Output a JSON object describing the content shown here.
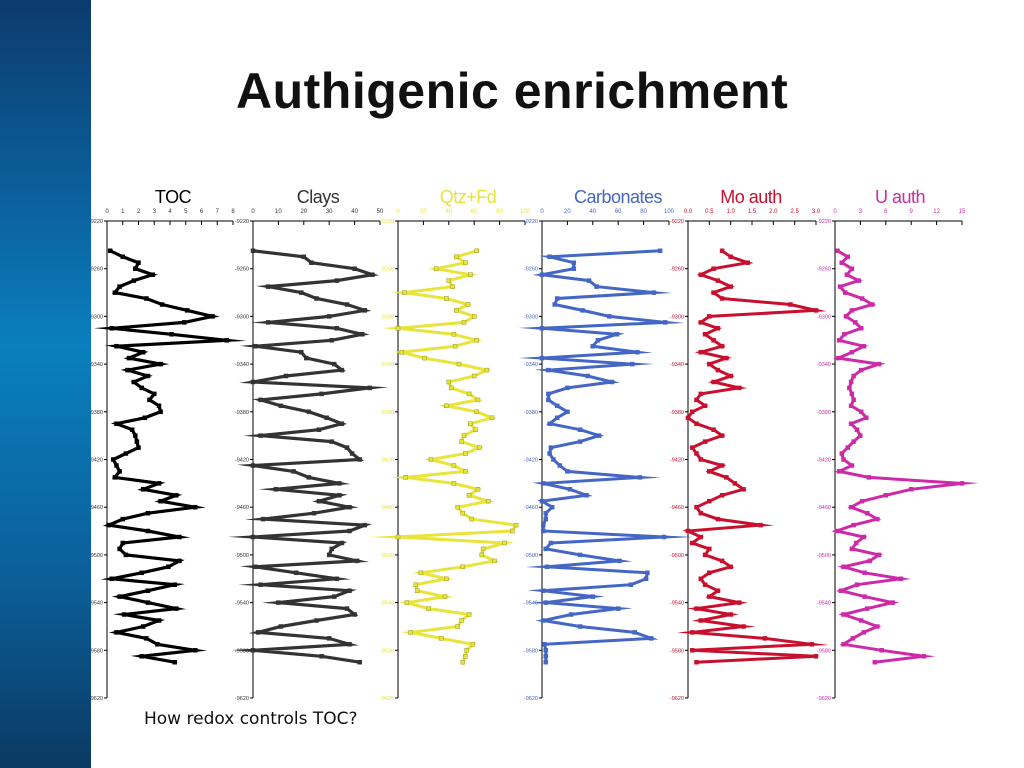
{
  "slide": {
    "title": "Authigenic enrichment",
    "caption": "How redox controls TOC?"
  },
  "chart_data": [
    {
      "type": "line",
      "title": "TOC",
      "color": "#000000",
      "xlim": [
        0,
        8
      ],
      "xticks": [
        "0",
        "1",
        "2",
        "3",
        "4",
        "5",
        "6",
        "7",
        "8"
      ],
      "ylim": [
        -9220,
        -9620
      ],
      "yticks": [
        "-9220",
        "-9260",
        "-9300",
        "-9340",
        "-9380",
        "-9420",
        "-9460",
        "-9500",
        "-9540",
        "-9580",
        "-9620"
      ],
      "depth": [
        -9245,
        -9250,
        -9255,
        -9260,
        -9265,
        -9270,
        -9275,
        -9280,
        -9285,
        -9290,
        -9295,
        -9300,
        -9305,
        -9310,
        -9315,
        -9320,
        -9325,
        -9330,
        -9335,
        -9340,
        -9345,
        -9350,
        -9355,
        -9360,
        -9365,
        -9370,
        -9375,
        -9380,
        -9385,
        -9390,
        -9395,
        -9400,
        -9405,
        -9410,
        -9415,
        -9420,
        -9425,
        -9430,
        -9435,
        -9440,
        -9445,
        -9450,
        -9455,
        -9460,
        -9465,
        -9470,
        -9475,
        -9480,
        -9485,
        -9490,
        -9495,
        -9500,
        -9505,
        -9510,
        -9515,
        -9520,
        -9525,
        -9530,
        -9535,
        -9540,
        -9545,
        -9550,
        -9555,
        -9560,
        -9565,
        -9570,
        -9575,
        -9580,
        -9585,
        -9590
      ],
      "values": [
        0.2,
        1.0,
        2.0,
        1.8,
        2.9,
        1.7,
        0.8,
        0.5,
        2.5,
        3.5,
        5.1,
        6.7,
        4.9,
        0.3,
        4.1,
        7.6,
        0.6,
        2.3,
        1.4,
        3.4,
        1.3,
        2.6,
        1.7,
        2.2,
        3.0,
        2.7,
        3.3,
        3.4,
        2.4,
        0.6,
        1.6,
        1.8,
        1.9,
        2.0,
        1.2,
        0.4,
        0.6,
        0.8,
        0.5,
        3.3,
        2.3,
        4.4,
        3.4,
        5.6,
        2.6,
        1.0,
        0.1,
        2.6,
        4.6,
        1.0,
        0.8,
        1.2,
        4.6,
        3.9,
        2.2,
        0.3,
        4.3,
        2.6,
        0.8,
        2.6,
        4.4,
        1.1,
        3.3,
        2.3,
        0.6,
        2.5,
        3.2,
        5.6,
        2.2,
        4.3
      ]
    },
    {
      "type": "line",
      "title": "Clays",
      "color": "#333333",
      "xlim": [
        0,
        50
      ],
      "xticks": [
        "0",
        "10",
        "20",
        "30",
        "40",
        "50"
      ],
      "ylim": [
        -9220,
        -9620
      ],
      "yticks": [
        "-9220",
        "-9260",
        "-9300",
        "-9340",
        "-9380",
        "-9420",
        "-9460",
        "-9500",
        "-9540",
        "-9580",
        "-9620"
      ],
      "depth": [
        -9245,
        -9250,
        -9255,
        -9260,
        -9265,
        -9270,
        -9275,
        -9280,
        -9285,
        -9290,
        -9295,
        -9300,
        -9305,
        -9310,
        -9315,
        -9320,
        -9325,
        -9330,
        -9335,
        -9340,
        -9345,
        -9350,
        -9355,
        -9360,
        -9365,
        -9370,
        -9375,
        -9380,
        -9385,
        -9390,
        -9395,
        -9400,
        -9405,
        -9410,
        -9415,
        -9420,
        -9425,
        -9430,
        -9435,
        -9440,
        -9445,
        -9450,
        -9455,
        -9460,
        -9465,
        -9470,
        -9475,
        -9480,
        -9485,
        -9490,
        -9495,
        -9500,
        -9505,
        -9510,
        -9515,
        -9520,
        -9525,
        -9530,
        -9535,
        -9540,
        -9545,
        -9550,
        -9555,
        -9560,
        -9565,
        -9570,
        -9575,
        -9580,
        -9585,
        -9590
      ],
      "values": [
        0,
        20,
        23,
        40,
        47,
        33,
        6,
        19,
        25,
        37,
        44,
        30,
        6,
        33,
        43,
        31,
        1,
        19,
        21,
        32,
        35,
        13,
        0,
        46,
        27,
        3,
        11,
        22,
        29,
        35,
        26,
        3,
        31,
        37,
        39,
        42,
        0,
        16,
        22,
        34,
        9,
        34,
        26,
        38,
        24,
        4,
        44,
        38,
        0,
        35,
        31,
        30,
        41,
        1,
        17,
        33,
        3,
        38,
        32,
        10,
        37,
        40,
        25,
        11,
        2,
        30,
        38,
        0,
        27,
        42
      ]
    },
    {
      "type": "line",
      "title": "Qtz+Fd",
      "color": "#e8e43a",
      "xlim": [
        0,
        100
      ],
      "xticks": [
        "0",
        "20",
        "40",
        "60",
        "80",
        "100"
      ],
      "ylim": [
        -9220,
        -9620
      ],
      "yticks": [
        "-9220",
        "-9260",
        "-9300",
        "-9340",
        "-9380",
        "-9420",
        "-9460",
        "-9500",
        "-9540",
        "-9580",
        "-9620"
      ],
      "depth": [
        -9245,
        -9250,
        -9255,
        -9260,
        -9265,
        -9270,
        -9275,
        -9280,
        -9285,
        -9290,
        -9295,
        -9300,
        -9305,
        -9310,
        -9315,
        -9320,
        -9325,
        -9330,
        -9335,
        -9340,
        -9345,
        -9350,
        -9355,
        -9360,
        -9365,
        -9370,
        -9375,
        -9380,
        -9385,
        -9390,
        -9395,
        -9400,
        -9405,
        -9410,
        -9415,
        -9420,
        -9425,
        -9430,
        -9435,
        -9440,
        -9445,
        -9450,
        -9455,
        -9460,
        -9465,
        -9470,
        -9475,
        -9480,
        -9485,
        -9490,
        -9495,
        -9500,
        -9505,
        -9510,
        -9515,
        -9520,
        -9525,
        -9530,
        -9535,
        -9540,
        -9545,
        -9550,
        -9555,
        -9560,
        -9565,
        -9570,
        -9575,
        -9580,
        -9585,
        -9590
      ],
      "values": [
        62,
        46,
        53,
        30,
        57,
        40,
        43,
        5,
        38,
        55,
        46,
        60,
        52,
        0,
        44,
        62,
        45,
        3,
        21,
        48,
        70,
        60,
        40,
        42,
        56,
        63,
        38,
        62,
        74,
        57,
        61,
        52,
        50,
        64,
        53,
        26,
        44,
        53,
        6,
        44,
        63,
        56,
        71,
        47,
        51,
        58,
        93,
        90,
        0,
        84,
        67,
        66,
        76,
        51,
        18,
        38,
        14,
        15,
        37,
        7,
        24,
        56,
        50,
        47,
        10,
        34,
        59,
        54,
        53,
        51
      ]
    },
    {
      "type": "line",
      "title": "Carbonates",
      "color": "#4466c4",
      "xlim": [
        0,
        100
      ],
      "xticks": [
        "0",
        "20",
        "40",
        "60",
        "80",
        "100"
      ],
      "ylim": [
        -9220,
        -9620
      ],
      "yticks": [
        "-9220",
        "-9260",
        "-9300",
        "-9340",
        "-9380",
        "-9420",
        "-9460",
        "-9500",
        "-9540",
        "-9580",
        "-9620"
      ],
      "depth": [
        -9245,
        -9250,
        -9255,
        -9260,
        -9265,
        -9270,
        -9275,
        -9280,
        -9285,
        -9290,
        -9295,
        -9300,
        -9305,
        -9310,
        -9315,
        -9320,
        -9325,
        -9330,
        -9335,
        -9340,
        -9345,
        -9350,
        -9355,
        -9360,
        -9365,
        -9370,
        -9375,
        -9380,
        -9385,
        -9390,
        -9395,
        -9400,
        -9405,
        -9410,
        -9415,
        -9420,
        -9425,
        -9430,
        -9435,
        -9440,
        -9445,
        -9450,
        -9455,
        -9460,
        -9465,
        -9470,
        -9475,
        -9480,
        -9485,
        -9490,
        -9495,
        -9500,
        -9505,
        -9510,
        -9515,
        -9520,
        -9525,
        -9530,
        -9535,
        -9540,
        -9545,
        -9550,
        -9555,
        -9560,
        -9565,
        -9570,
        -9575,
        -9580,
        -9585,
        -9590
      ],
      "values": [
        93,
        6,
        25,
        25,
        0,
        37,
        43,
        88,
        12,
        10,
        32,
        53,
        97,
        0,
        59,
        44,
        40,
        75,
        0,
        71,
        5,
        36,
        55,
        20,
        5,
        5,
        12,
        20,
        12,
        6,
        30,
        45,
        30,
        7,
        6,
        9,
        14,
        20,
        77,
        1,
        22,
        35,
        0,
        8,
        3,
        3,
        1,
        1,
        96,
        7,
        3,
        30,
        61,
        4,
        83,
        82,
        70,
        1,
        40,
        3,
        60,
        23,
        1,
        30,
        73,
        86,
        2,
        3,
        3,
        3
      ]
    },
    {
      "type": "line",
      "title": "Mo auth",
      "color": "#c8102e",
      "xlim": [
        0,
        3
      ],
      "xticks": [
        "0.0",
        "0.5",
        "1.0",
        "1.5",
        "2.0",
        "2.5",
        "3.0"
      ],
      "ylim": [
        -9220,
        -9620
      ],
      "yticks": [
        "-9220",
        "-9260",
        "-9300",
        "-9340",
        "-9380",
        "-9420",
        "-9460",
        "-9500",
        "-9540",
        "-9580",
        "-9620"
      ],
      "depth": [
        -9245,
        -9250,
        -9255,
        -9260,
        -9265,
        -9270,
        -9275,
        -9280,
        -9285,
        -9290,
        -9295,
        -9300,
        -9305,
        -9310,
        -9315,
        -9320,
        -9325,
        -9330,
        -9335,
        -9340,
        -9345,
        -9350,
        -9355,
        -9360,
        -9365,
        -9370,
        -9375,
        -9380,
        -9385,
        -9390,
        -9395,
        -9400,
        -9405,
        -9410,
        -9415,
        -9420,
        -9425,
        -9430,
        -9435,
        -9440,
        -9445,
        -9450,
        -9455,
        -9460,
        -9465,
        -9470,
        -9475,
        -9480,
        -9485,
        -9490,
        -9495,
        -9500,
        -9505,
        -9510,
        -9515,
        -9520,
        -9525,
        -9530,
        -9535,
        -9540,
        -9545,
        -9550,
        -9555,
        -9560,
        -9565,
        -9570,
        -9575,
        -9580,
        -9585,
        -9590
      ],
      "values": [
        0.8,
        1.0,
        1.4,
        0.6,
        0.3,
        0.7,
        1.0,
        0.6,
        0.8,
        2.4,
        3.0,
        0.5,
        0.3,
        0.7,
        0.4,
        0.6,
        0.8,
        0.3,
        0.9,
        0.5,
        0.7,
        1.0,
        0.6,
        1.2,
        0.3,
        0.2,
        0.4,
        0.1,
        0.0,
        0.2,
        0.6,
        0.8,
        0.4,
        0.1,
        0.2,
        0.3,
        0.8,
        0.5,
        0.9,
        1.1,
        1.3,
        0.8,
        0.5,
        0.2,
        0.3,
        0.7,
        1.7,
        0.0,
        0.3,
        0.1,
        0.5,
        0.4,
        0.8,
        1.0,
        0.5,
        0.3,
        0.4,
        0.7,
        0.5,
        1.2,
        0.2,
        1.0,
        0.3,
        1.3,
        0.1,
        1.8,
        2.9,
        0.1,
        3.0,
        0.2
      ]
    },
    {
      "type": "line",
      "title": "U auth",
      "color": "#cc2aa8",
      "xlim": [
        0,
        15
      ],
      "xticks": [
        "0",
        "3",
        "6",
        "9",
        "12",
        "15"
      ],
      "ylim": [
        -9220,
        -9620
      ],
      "yticks": [
        "-9220",
        "-9260",
        "-9300",
        "-9340",
        "-9380",
        "-9420",
        "-9460",
        "-9500",
        "-9540",
        "-9580",
        "-9620"
      ],
      "depth": [
        -9245,
        -9250,
        -9255,
        -9260,
        -9265,
        -9270,
        -9275,
        -9280,
        -9285,
        -9290,
        -9295,
        -9300,
        -9305,
        -9310,
        -9315,
        -9320,
        -9325,
        -9330,
        -9335,
        -9340,
        -9345,
        -9350,
        -9355,
        -9360,
        -9365,
        -9370,
        -9375,
        -9380,
        -9385,
        -9390,
        -9395,
        -9400,
        -9405,
        -9410,
        -9415,
        -9420,
        -9425,
        -9430,
        -9435,
        -9440,
        -9445,
        -9450,
        -9455,
        -9460,
        -9465,
        -9470,
        -9475,
        -9480,
        -9485,
        -9490,
        -9495,
        -9500,
        -9505,
        -9510,
        -9515,
        -9520,
        -9525,
        -9530,
        -9535,
        -9540,
        -9545,
        -9550,
        -9555,
        -9560,
        -9565,
        -9570,
        -9575,
        -9580,
        -9585,
        -9590
      ],
      "values": [
        0.3,
        1.5,
        0.8,
        2.0,
        1.4,
        2.8,
        0.6,
        1.2,
        3.2,
        4.4,
        2.0,
        1.3,
        2.4,
        3.1,
        1.1,
        0.5,
        3.4,
        2.0,
        0.4,
        5.2,
        3.1,
        2.2,
        1.9,
        1.7,
        2.0,
        2.2,
        1.9,
        3.1,
        3.7,
        1.9,
        2.6,
        3.0,
        2.2,
        1.5,
        0.8,
        1.0,
        2.0,
        0.5,
        4.0,
        15.0,
        9.0,
        6.0,
        3.2,
        1.9,
        3.8,
        5.0,
        2.2,
        0.2,
        3.4,
        2.5,
        2.0,
        5.2,
        4.1,
        1.0,
        3.5,
        7.8,
        2.6,
        0.7,
        3.5,
        6.8,
        3.8,
        1.0,
        3.1,
        5.0,
        3.4,
        2.1,
        1.0,
        5.5,
        10.5,
        4.7
      ]
    }
  ]
}
